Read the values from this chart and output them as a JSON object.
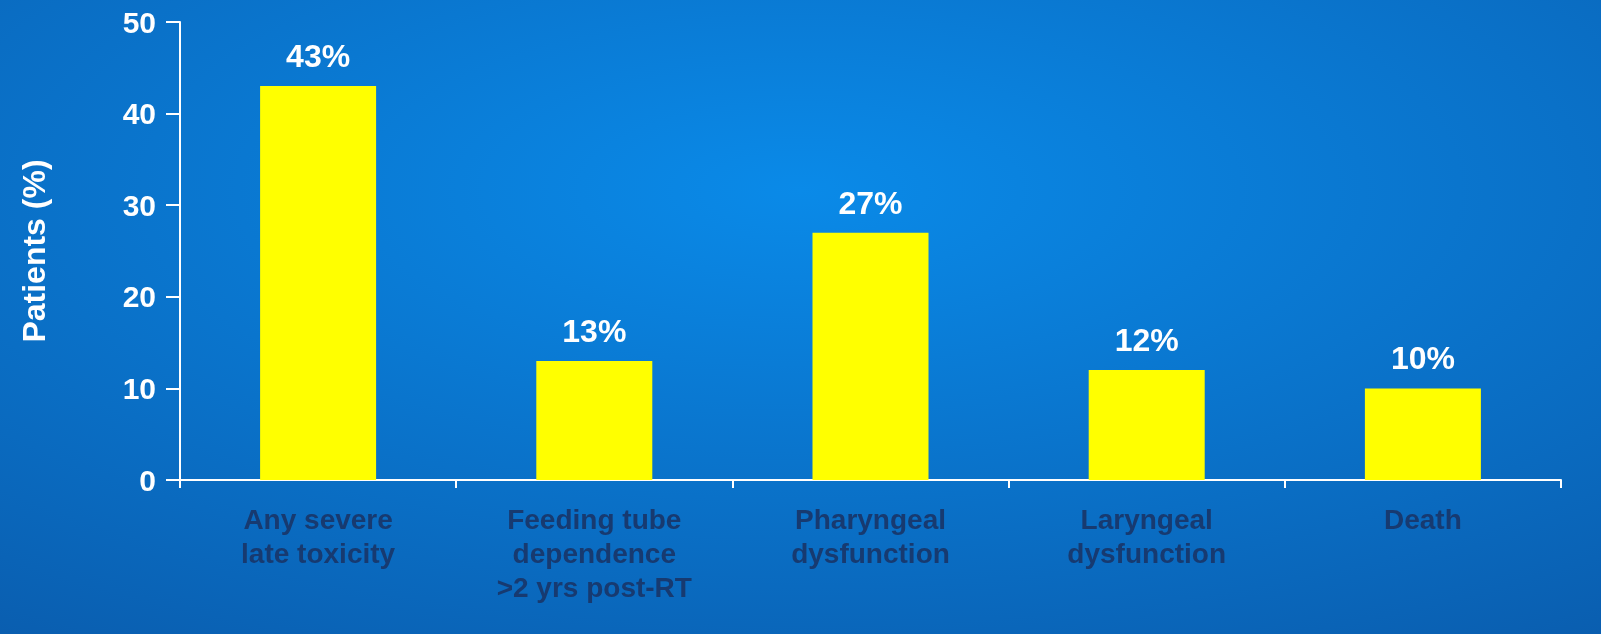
{
  "chart_data": {
    "type": "bar",
    "ylabel": "Patients (%)",
    "categories": [
      "Any severe\nlate toxicity",
      "Feeding tube\ndependence\n>2 yrs post-RT",
      "Pharyngeal\ndysfunction",
      "Laryngeal\ndysfunction",
      "Death"
    ],
    "values": [
      43,
      13,
      27,
      12,
      10
    ],
    "value_labels": [
      "43%",
      "13%",
      "27%",
      "12%",
      "10%"
    ],
    "color": "#ffff00",
    "ylim": [
      0,
      50
    ],
    "yticks": [
      0,
      10,
      20,
      30,
      40,
      50
    ],
    "grid": false
  }
}
